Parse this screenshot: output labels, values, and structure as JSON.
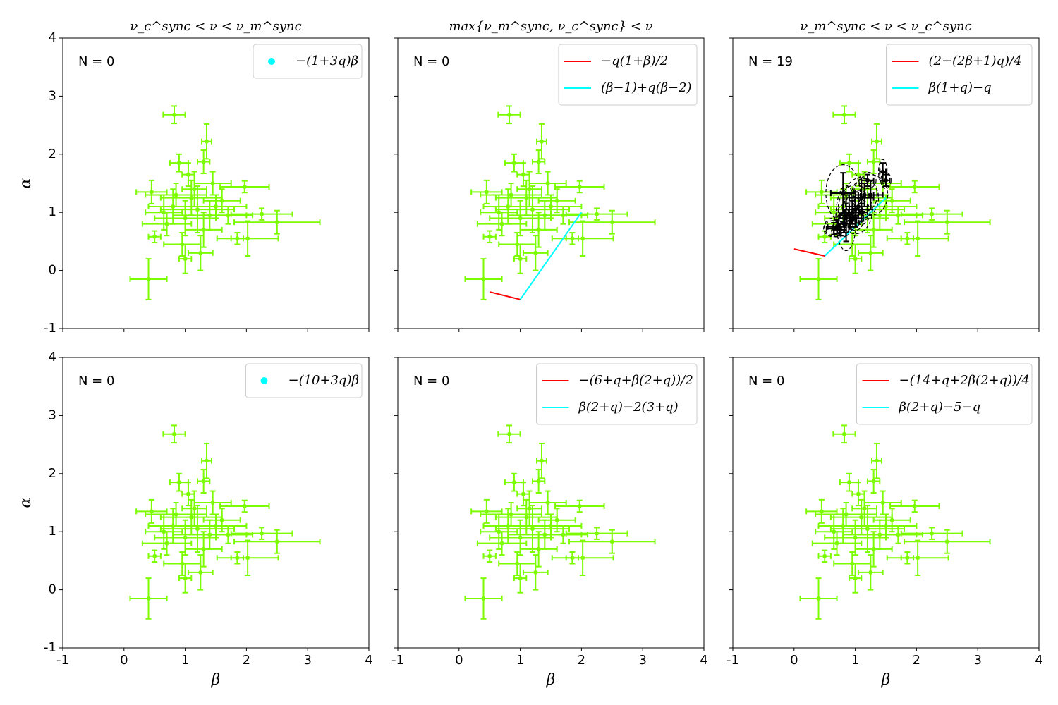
{
  "chart_data": [
    {
      "type": "scatter",
      "title": "ν_c^sync < ν < ν_m^sync",
      "annotation": "N = 0",
      "ylabel": "α",
      "xlim": [
        -1,
        4
      ],
      "ylim": [
        -1,
        4
      ],
      "xticks": [
        -1,
        0,
        1,
        2,
        3,
        4
      ],
      "yticks": [
        -1,
        0,
        1,
        2,
        3,
        4
      ],
      "legend": "upper right",
      "series": [
        {
          "type": "errorbar",
          "color": "#7cfc00",
          "x": [
            0.82,
            1.35,
            0.4,
            1.0,
            2.5,
            2.02,
            1.85,
            2.25,
            1.97,
            0.45,
            0.5,
            0.9,
            1.3,
            1.45,
            1.1,
            0.8,
            1.2,
            1.0,
            0.7,
            1.5,
            1.3,
            0.95,
            1.6,
            0.65,
            1.15,
            1.05,
            1.7,
            0.85,
            1.25,
            1.4
          ],
          "values": [
            2.68,
            2.22,
            -0.15,
            0.2,
            0.83,
            0.55,
            0.55,
            0.97,
            1.44,
            1.35,
            0.58,
            1.85,
            1.87,
            1.5,
            1.25,
            1.1,
            1.05,
            0.9,
            0.8,
            1.1,
            0.7,
            0.45,
            1.2,
            1.0,
            1.4,
            1.65,
            0.95,
            1.3,
            0.3,
            0.95
          ],
          "xerr": [
            0.18,
            0.08,
            0.3,
            0.1,
            0.7,
            0.5,
            0.1,
            0.5,
            0.4,
            0.25,
            0.1,
            0.15,
            0.1,
            0.3,
            0.5,
            0.4,
            0.6,
            0.5,
            0.4,
            0.5,
            0.3,
            0.3,
            0.3,
            0.3,
            0.2,
            0.1,
            0.4,
            0.5,
            0.2,
            0.6
          ],
          "yerr": [
            0.15,
            0.3,
            0.35,
            0.25,
            0.2,
            0.3,
            0.1,
            0.1,
            0.1,
            0.2,
            0.1,
            0.15,
            0.2,
            0.2,
            0.3,
            0.3,
            0.4,
            0.3,
            0.2,
            0.2,
            0.3,
            0.2,
            0.2,
            0.3,
            0.3,
            0.2,
            0.15,
            0.2,
            0.3,
            0.25
          ]
        },
        {
          "type": "scatter",
          "name": "−(1+3q)β",
          "color": "#00ffff",
          "x": [],
          "values": []
        }
      ]
    },
    {
      "type": "scatter",
      "title": "max{ν_m^sync, ν_c^sync} < ν",
      "annotation": "N = 0",
      "xlim": [
        -1,
        4
      ],
      "ylim": [
        -1,
        4
      ],
      "xticks": [
        -1,
        0,
        1,
        2,
        3,
        4
      ],
      "yticks": [
        -1,
        0,
        1,
        2,
        3,
        4
      ],
      "legend": "upper right",
      "series": [
        {
          "type": "errorbar",
          "color": "#7cfc00",
          "x": [
            0.82,
            1.35,
            0.4,
            1.0,
            2.5,
            2.02,
            1.85,
            2.25,
            1.97,
            0.45,
            0.5,
            0.9,
            1.3,
            1.45,
            1.1,
            0.8,
            1.2,
            1.0,
            0.7,
            1.5,
            1.3,
            0.95,
            1.6,
            0.65,
            1.15,
            1.05,
            1.7,
            0.85,
            1.25,
            1.4
          ],
          "values": [
            2.68,
            2.22,
            -0.15,
            0.2,
            0.83,
            0.55,
            0.55,
            0.97,
            1.44,
            1.35,
            0.58,
            1.85,
            1.87,
            1.5,
            1.25,
            1.1,
            1.05,
            0.9,
            0.8,
            1.1,
            0.7,
            0.45,
            1.2,
            1.0,
            1.4,
            1.65,
            0.95,
            1.3,
            0.3,
            0.95
          ],
          "xerr": [
            0.18,
            0.08,
            0.3,
            0.1,
            0.7,
            0.5,
            0.1,
            0.5,
            0.4,
            0.25,
            0.1,
            0.15,
            0.1,
            0.3,
            0.5,
            0.4,
            0.6,
            0.5,
            0.4,
            0.5,
            0.3,
            0.3,
            0.3,
            0.3,
            0.2,
            0.1,
            0.4,
            0.5,
            0.2,
            0.6
          ],
          "yerr": [
            0.15,
            0.3,
            0.35,
            0.25,
            0.2,
            0.3,
            0.1,
            0.1,
            0.1,
            0.2,
            0.1,
            0.15,
            0.2,
            0.2,
            0.3,
            0.3,
            0.4,
            0.3,
            0.2,
            0.2,
            0.3,
            0.2,
            0.2,
            0.3,
            0.3,
            0.2,
            0.15,
            0.2,
            0.3,
            0.25
          ]
        },
        {
          "type": "line",
          "name": "−q(1+β)/2",
          "color": "#ff0000",
          "x": [
            0.5,
            1.0
          ],
          "values": [
            -0.37,
            -0.5
          ]
        },
        {
          "type": "line",
          "name": "(β−1)+q(β−2)",
          "color": "#00ffff",
          "x": [
            1.0,
            2.0
          ],
          "values": [
            -0.5,
            1.0
          ]
        }
      ]
    },
    {
      "type": "scatter",
      "title": "ν_m^sync < ν < ν_c^sync",
      "annotation": "N = 19",
      "xlim": [
        -1,
        4
      ],
      "ylim": [
        -1,
        4
      ],
      "xticks": [
        -1,
        0,
        1,
        2,
        3,
        4
      ],
      "yticks": [
        -1,
        0,
        1,
        2,
        3,
        4
      ],
      "legend": "upper right",
      "series": [
        {
          "type": "errorbar",
          "color": "#7cfc00",
          "x": [
            0.82,
            1.35,
            0.4,
            1.0,
            2.5,
            2.02,
            1.85,
            2.25,
            1.97,
            0.45,
            0.5,
            0.9,
            1.3,
            1.45,
            1.1,
            0.8,
            1.2,
            1.0,
            0.7,
            1.5,
            1.3,
            0.95,
            1.6,
            0.65,
            1.15,
            1.05,
            1.7,
            0.85,
            1.25,
            1.4
          ],
          "values": [
            2.68,
            2.22,
            -0.15,
            0.2,
            0.83,
            0.55,
            0.55,
            0.97,
            1.44,
            1.35,
            0.58,
            1.85,
            1.87,
            1.5,
            1.25,
            1.1,
            1.05,
            0.9,
            0.8,
            1.1,
            0.7,
            0.45,
            1.2,
            1.0,
            1.4,
            1.65,
            0.95,
            1.3,
            0.3,
            0.95
          ],
          "xerr": [
            0.18,
            0.08,
            0.3,
            0.1,
            0.7,
            0.5,
            0.1,
            0.5,
            0.4,
            0.25,
            0.1,
            0.15,
            0.1,
            0.3,
            0.5,
            0.4,
            0.6,
            0.5,
            0.4,
            0.5,
            0.3,
            0.3,
            0.3,
            0.3,
            0.2,
            0.1,
            0.4,
            0.5,
            0.2,
            0.6
          ],
          "yerr": [
            0.15,
            0.3,
            0.35,
            0.25,
            0.2,
            0.3,
            0.1,
            0.1,
            0.1,
            0.2,
            0.1,
            0.15,
            0.2,
            0.2,
            0.3,
            0.3,
            0.4,
            0.3,
            0.2,
            0.2,
            0.3,
            0.2,
            0.2,
            0.3,
            0.3,
            0.2,
            0.15,
            0.2,
            0.3,
            0.25
          ]
        },
        {
          "type": "line",
          "name": "(2−(2β+1)q)/4",
          "color": "#ff0000",
          "x": [
            0.0,
            0.5
          ],
          "values": [
            0.37,
            0.25
          ]
        },
        {
          "type": "line",
          "name": "β(1+q)−q",
          "color": "#00ffff",
          "x": [
            0.5,
            1.5
          ],
          "values": [
            0.25,
            1.25
          ]
        },
        {
          "type": "ellipse",
          "color": "#000000",
          "x": [
            0.65,
            0.7,
            0.75,
            0.8,
            0.82,
            0.85,
            0.9,
            0.92,
            0.95,
            1.0,
            1.0,
            1.05,
            1.1,
            1.1,
            1.15,
            1.2,
            1.25,
            1.45,
            1.5
          ],
          "values": [
            0.72,
            0.75,
            0.7,
            1.33,
            0.8,
            0.9,
            0.95,
            0.85,
            1.0,
            1.05,
            0.9,
            1.1,
            1.25,
            1.0,
            1.3,
            1.55,
            1.3,
            1.7,
            1.55
          ],
          "xerr": [
            0.12,
            0.15,
            0.1,
            0.2,
            0.1,
            0.12,
            0.15,
            0.1,
            0.12,
            0.2,
            0.1,
            0.15,
            0.2,
            0.1,
            0.15,
            0.1,
            0.2,
            0.05,
            0.06
          ],
          "yerr": [
            0.1,
            0.12,
            0.1,
            0.35,
            0.15,
            0.4,
            0.15,
            0.1,
            0.2,
            0.3,
            0.15,
            0.2,
            0.25,
            0.15,
            0.2,
            0.1,
            0.25,
            0.15,
            0.1
          ]
        }
      ]
    },
    {
      "type": "scatter",
      "annotation": "N = 0",
      "xlabel": "β",
      "ylabel": "α",
      "xlim": [
        -1,
        4
      ],
      "ylim": [
        -1,
        4
      ],
      "xticks": [
        -1,
        0,
        1,
        2,
        3,
        4
      ],
      "yticks": [
        -1,
        0,
        1,
        2,
        3,
        4
      ],
      "legend": "upper right",
      "series": [
        {
          "type": "errorbar",
          "color": "#7cfc00",
          "x": [
            0.82,
            1.35,
            0.4,
            1.0,
            2.5,
            2.02,
            1.85,
            2.25,
            1.97,
            0.45,
            0.5,
            0.9,
            1.3,
            1.45,
            1.1,
            0.8,
            1.2,
            1.0,
            0.7,
            1.5,
            1.3,
            0.95,
            1.6,
            0.65,
            1.15,
            1.05,
            1.7,
            0.85,
            1.25,
            1.4
          ],
          "values": [
            2.68,
            2.22,
            -0.15,
            0.2,
            0.83,
            0.55,
            0.55,
            0.97,
            1.44,
            1.35,
            0.58,
            1.85,
            1.87,
            1.5,
            1.25,
            1.1,
            1.05,
            0.9,
            0.8,
            1.1,
            0.7,
            0.45,
            1.2,
            1.0,
            1.4,
            1.65,
            0.95,
            1.3,
            0.3,
            0.95
          ],
          "xerr": [
            0.18,
            0.08,
            0.3,
            0.1,
            0.7,
            0.5,
            0.1,
            0.5,
            0.4,
            0.25,
            0.1,
            0.15,
            0.1,
            0.3,
            0.5,
            0.4,
            0.6,
            0.5,
            0.4,
            0.5,
            0.3,
            0.3,
            0.3,
            0.3,
            0.2,
            0.1,
            0.4,
            0.5,
            0.2,
            0.6
          ],
          "yerr": [
            0.15,
            0.3,
            0.35,
            0.25,
            0.2,
            0.3,
            0.1,
            0.1,
            0.1,
            0.2,
            0.1,
            0.15,
            0.2,
            0.2,
            0.3,
            0.3,
            0.4,
            0.3,
            0.2,
            0.2,
            0.3,
            0.2,
            0.2,
            0.3,
            0.3,
            0.2,
            0.15,
            0.2,
            0.3,
            0.25
          ]
        },
        {
          "type": "scatter",
          "name": "−(10+3q)β",
          "color": "#00ffff",
          "x": [],
          "values": []
        }
      ]
    },
    {
      "type": "scatter",
      "annotation": "N = 0",
      "xlabel": "β",
      "xlim": [
        -1,
        4
      ],
      "ylim": [
        -1,
        4
      ],
      "xticks": [
        -1,
        0,
        1,
        2,
        3,
        4
      ],
      "yticks": [
        -1,
        0,
        1,
        2,
        3,
        4
      ],
      "legend": "upper right",
      "series": [
        {
          "type": "errorbar",
          "color": "#7cfc00",
          "x": [
            0.82,
            1.35,
            0.4,
            1.0,
            2.5,
            2.02,
            1.85,
            2.25,
            1.97,
            0.45,
            0.5,
            0.9,
            1.3,
            1.45,
            1.1,
            0.8,
            1.2,
            1.0,
            0.7,
            1.5,
            1.3,
            0.95,
            1.6,
            0.65,
            1.15,
            1.05,
            1.7,
            0.85,
            1.25,
            1.4
          ],
          "values": [
            2.68,
            2.22,
            -0.15,
            0.2,
            0.83,
            0.55,
            0.55,
            0.97,
            1.44,
            1.35,
            0.58,
            1.85,
            1.87,
            1.5,
            1.25,
            1.1,
            1.05,
            0.9,
            0.8,
            1.1,
            0.7,
            0.45,
            1.2,
            1.0,
            1.4,
            1.65,
            0.95,
            1.3,
            0.3,
            0.95
          ],
          "xerr": [
            0.18,
            0.08,
            0.3,
            0.1,
            0.7,
            0.5,
            0.1,
            0.5,
            0.4,
            0.25,
            0.1,
            0.15,
            0.1,
            0.3,
            0.5,
            0.4,
            0.6,
            0.5,
            0.4,
            0.5,
            0.3,
            0.3,
            0.3,
            0.3,
            0.2,
            0.1,
            0.4,
            0.5,
            0.2,
            0.6
          ],
          "yerr": [
            0.15,
            0.3,
            0.35,
            0.25,
            0.2,
            0.3,
            0.1,
            0.1,
            0.1,
            0.2,
            0.1,
            0.15,
            0.2,
            0.2,
            0.3,
            0.3,
            0.4,
            0.3,
            0.2,
            0.2,
            0.3,
            0.2,
            0.2,
            0.3,
            0.3,
            0.2,
            0.15,
            0.2,
            0.3,
            0.25
          ]
        },
        {
          "type": "line",
          "name": "−(6+q+β(2+q))/2",
          "color": "#ff0000",
          "x": [],
          "values": []
        },
        {
          "type": "line",
          "name": "β(2+q)−2(3+q)",
          "color": "#00ffff",
          "x": [],
          "values": []
        }
      ]
    },
    {
      "type": "scatter",
      "annotation": "N = 0",
      "xlabel": "β",
      "xlim": [
        -1,
        4
      ],
      "ylim": [
        -1,
        4
      ],
      "xticks": [
        -1,
        0,
        1,
        2,
        3,
        4
      ],
      "yticks": [
        -1,
        0,
        1,
        2,
        3,
        4
      ],
      "legend": "upper right",
      "series": [
        {
          "type": "errorbar",
          "color": "#7cfc00",
          "x": [
            0.82,
            1.35,
            0.4,
            1.0,
            2.5,
            2.02,
            1.85,
            2.25,
            1.97,
            0.45,
            0.5,
            0.9,
            1.3,
            1.45,
            1.1,
            0.8,
            1.2,
            1.0,
            0.7,
            1.5,
            1.3,
            0.95,
            1.6,
            0.65,
            1.15,
            1.05,
            1.7,
            0.85,
            1.25,
            1.4
          ],
          "values": [
            2.68,
            2.22,
            -0.15,
            0.2,
            0.83,
            0.55,
            0.55,
            0.97,
            1.44,
            1.35,
            0.58,
            1.85,
            1.87,
            1.5,
            1.25,
            1.1,
            1.05,
            0.9,
            0.8,
            1.1,
            0.7,
            0.45,
            1.2,
            1.0,
            1.4,
            1.65,
            0.95,
            1.3,
            0.3,
            0.95
          ],
          "xerr": [
            0.18,
            0.08,
            0.3,
            0.1,
            0.7,
            0.5,
            0.1,
            0.5,
            0.4,
            0.25,
            0.1,
            0.15,
            0.1,
            0.3,
            0.5,
            0.4,
            0.6,
            0.5,
            0.4,
            0.5,
            0.3,
            0.3,
            0.3,
            0.3,
            0.2,
            0.1,
            0.4,
            0.5,
            0.2,
            0.6
          ],
          "yerr": [
            0.15,
            0.3,
            0.35,
            0.25,
            0.2,
            0.3,
            0.1,
            0.1,
            0.1,
            0.2,
            0.1,
            0.15,
            0.2,
            0.2,
            0.3,
            0.3,
            0.4,
            0.3,
            0.2,
            0.2,
            0.3,
            0.2,
            0.2,
            0.3,
            0.3,
            0.2,
            0.15,
            0.2,
            0.3,
            0.25
          ]
        },
        {
          "type": "line",
          "name": "−(14+q+2β(2+q))/4",
          "color": "#ff0000",
          "x": [],
          "values": []
        },
        {
          "type": "line",
          "name": "β(2+q)−5−q",
          "color": "#00ffff",
          "x": [],
          "values": []
        }
      ]
    }
  ]
}
